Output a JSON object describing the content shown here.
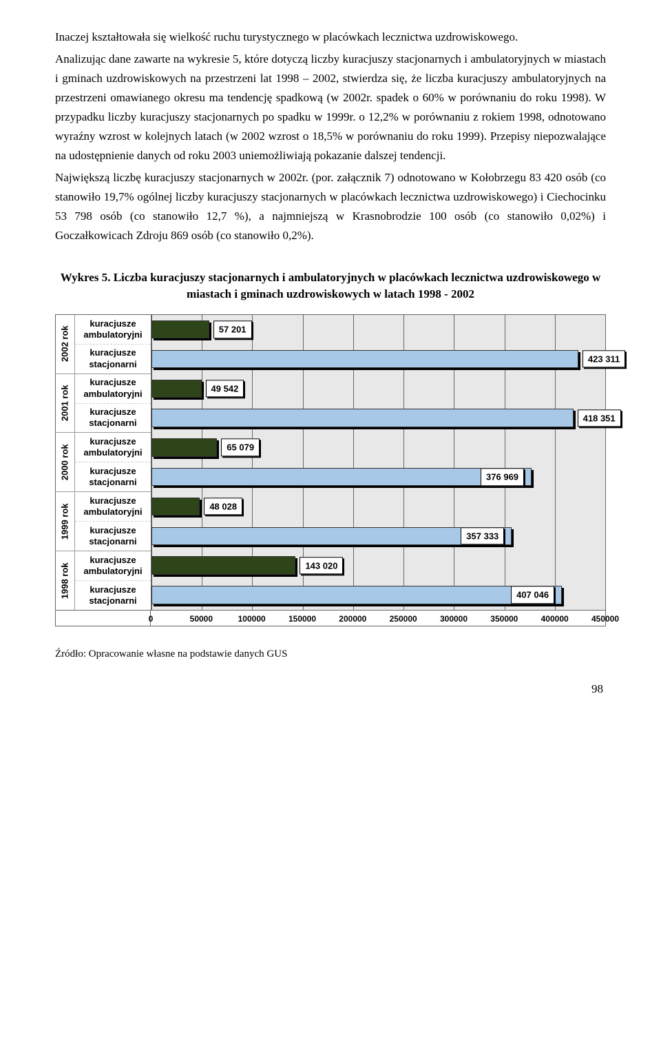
{
  "paragraphs": {
    "p1": "Inaczej kształtowała się wielkość ruchu turystycznego w placówkach lecznictwa uzdrowiskowego.",
    "p2": "Analizując dane zawarte na wykresie 5, które dotyczą liczby kuracjuszy stacjonarnych i ambulatoryjnych w miastach i gminach uzdrowiskowych na przestrzeni lat 1998 – 2002, stwierdza się, że liczba kuracjuszy ambulatoryjnych na przestrzeni omawianego okresu ma tendencję spadkową (w 2002r. spadek o 60% w porównaniu do roku 1998). W przypadku liczby kuracjuszy stacjonarnych po spadku w 1999r. o 12,2% w porównaniu z rokiem 1998, odnotowano wyraźny wzrost w kolejnych latach (w 2002 wzrost o 18,5% w porównaniu do roku 1999). Przepisy niepozwalające na udostępnienie danych od roku 2003 uniemożliwiają pokazanie dalszej tendencji.",
    "p3": "Największą liczbę kuracjuszy stacjonarnych w 2002r. (por. załącznik 7) odnotowano w Kołobrzegu 83 420 osób (co stanowiło 19,7% ogólnej liczby kuracjuszy stacjonarnych w placówkach lecznictwa uzdrowiskowego) i Ciechocinku 53 798 osób (co stanowiło 12,7 %), a najmniejszą w Krasnobrodzie 100 osób (co stanowiło 0,02%) i Goczałkowicach Zdroju 869 osób (co stanowiło 0,2%)."
  },
  "chart": {
    "title": "Wykres 5. Liczba kuracjuszy stacjonarnych i ambulatoryjnych w placówkach lecznictwa uzdrowiskowego w miastach i gminach uzdrowiskowych w latach 1998 - 2002",
    "xmax": 450000,
    "xtick_step": 50000,
    "xticks": [
      "0",
      "50000",
      "100000",
      "150000",
      "200000",
      "250000",
      "300000",
      "350000",
      "400000",
      "450000"
    ],
    "plot_bg": "#e8e8e8",
    "grid_color": "#666666",
    "colors": {
      "ambulatoryjni": "#2d4518",
      "stacjonarni": "#a8c8e8"
    },
    "years": [
      {
        "label": "2002 rok",
        "rows": [
          {
            "cat": "kuracjusze ambulatoryjni",
            "value": 57201,
            "value_str": "57 201",
            "color": "#2d4518",
            "label_pos": "right"
          },
          {
            "cat": "kuracjusze stacjonarni",
            "value": 423311,
            "value_str": "423 311",
            "color": "#a8c8e8",
            "label_pos": "right"
          }
        ]
      },
      {
        "label": "2001 rok",
        "rows": [
          {
            "cat": "kuracjusze ambulatoryjni",
            "value": 49542,
            "value_str": "49 542",
            "color": "#2d4518",
            "label_pos": "right"
          },
          {
            "cat": "kuracjusze stacjonarni",
            "value": 418351,
            "value_str": "418 351",
            "color": "#a8c8e8",
            "label_pos": "right"
          }
        ]
      },
      {
        "label": "2000 rok",
        "rows": [
          {
            "cat": "kuracjusze ambulatoryjni",
            "value": 65079,
            "value_str": "65 079",
            "color": "#2d4518",
            "label_pos": "right"
          },
          {
            "cat": "kuracjusze stacjonarni",
            "value": 376969,
            "value_str": "376 969",
            "color": "#a8c8e8",
            "label_pos": "inside"
          }
        ]
      },
      {
        "label": "1999 rok",
        "rows": [
          {
            "cat": "kuracjusze ambulatoryjni",
            "value": 48028,
            "value_str": "48 028",
            "color": "#2d4518",
            "label_pos": "right"
          },
          {
            "cat": "kuracjusze stacjonarni",
            "value": 357333,
            "value_str": "357 333",
            "color": "#a8c8e8",
            "label_pos": "inside"
          }
        ]
      },
      {
        "label": "1998 rok",
        "rows": [
          {
            "cat": "kuracjusze ambulatoryjni",
            "value": 143020,
            "value_str": "143 020",
            "color": "#2d4518",
            "label_pos": "right"
          },
          {
            "cat": "kuracjusze stacjonarni",
            "value": 407046,
            "value_str": "407 046",
            "color": "#a8c8e8",
            "label_pos": "inside"
          }
        ]
      }
    ]
  },
  "source": "Źródło: Opracowanie własne na podstawie danych GUS",
  "page_number": "98"
}
